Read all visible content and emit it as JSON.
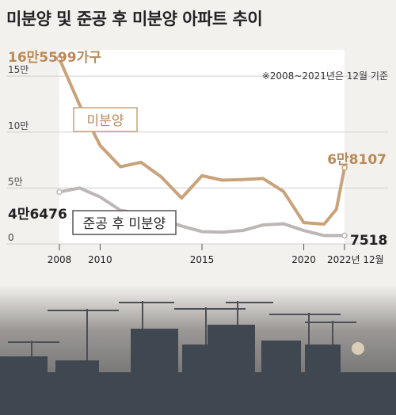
{
  "title": "미분양 및 준공 후 미분양 아파트 추이",
  "chart_data": {
    "type": "line",
    "note": "※2008~2021년은 12월 기준",
    "x": [
      2008,
      2009,
      2010,
      2011,
      2012,
      2013,
      2014,
      2015,
      2016,
      2017,
      2018,
      2019,
      2020,
      2021,
      2022
    ],
    "x_tick_labels": [
      "2008",
      "2010",
      "2015",
      "2020",
      "2022년 12월"
    ],
    "x_tick_values": [
      2008,
      2010,
      2015,
      2020,
      2022
    ],
    "y_tick_labels": [
      "0",
      "5만",
      "10만",
      "15만"
    ],
    "y_tick_values": [
      0,
      50000,
      100000,
      150000
    ],
    "ylim": [
      0,
      165000
    ],
    "series": [
      {
        "name": "미분양",
        "color": "#c9a27a",
        "values": [
          165599,
          124000,
          88000,
          69000,
          73000,
          60000,
          41000,
          61000,
          57000,
          57500,
          58500,
          47000,
          19000,
          17700,
          31000,
          68107
        ],
        "x": [
          2008,
          2009,
          2010,
          2011,
          2012,
          2013,
          2014,
          2015,
          2016,
          2017,
          2018,
          2019,
          2020,
          2021,
          2021.6,
          2022
        ],
        "end_labels": {
          "start": "16만5599가구",
          "end": "6만8107"
        }
      },
      {
        "name": "준공 후 미분양",
        "color": "#bdb6b6",
        "values": [
          46476,
          50000,
          42000,
          30000,
          27000,
          22000,
          16000,
          11000,
          10500,
          12000,
          17000,
          18000,
          12000,
          7500,
          7500,
          7518
        ],
        "x": [
          2008,
          2009,
          2010,
          2011,
          2012,
          2013,
          2014,
          2015,
          2016,
          2017,
          2018,
          2019,
          2020,
          2021,
          2021.6,
          2022
        ],
        "end_labels": {
          "start": "4만6476",
          "end": "7518"
        }
      }
    ]
  }
}
